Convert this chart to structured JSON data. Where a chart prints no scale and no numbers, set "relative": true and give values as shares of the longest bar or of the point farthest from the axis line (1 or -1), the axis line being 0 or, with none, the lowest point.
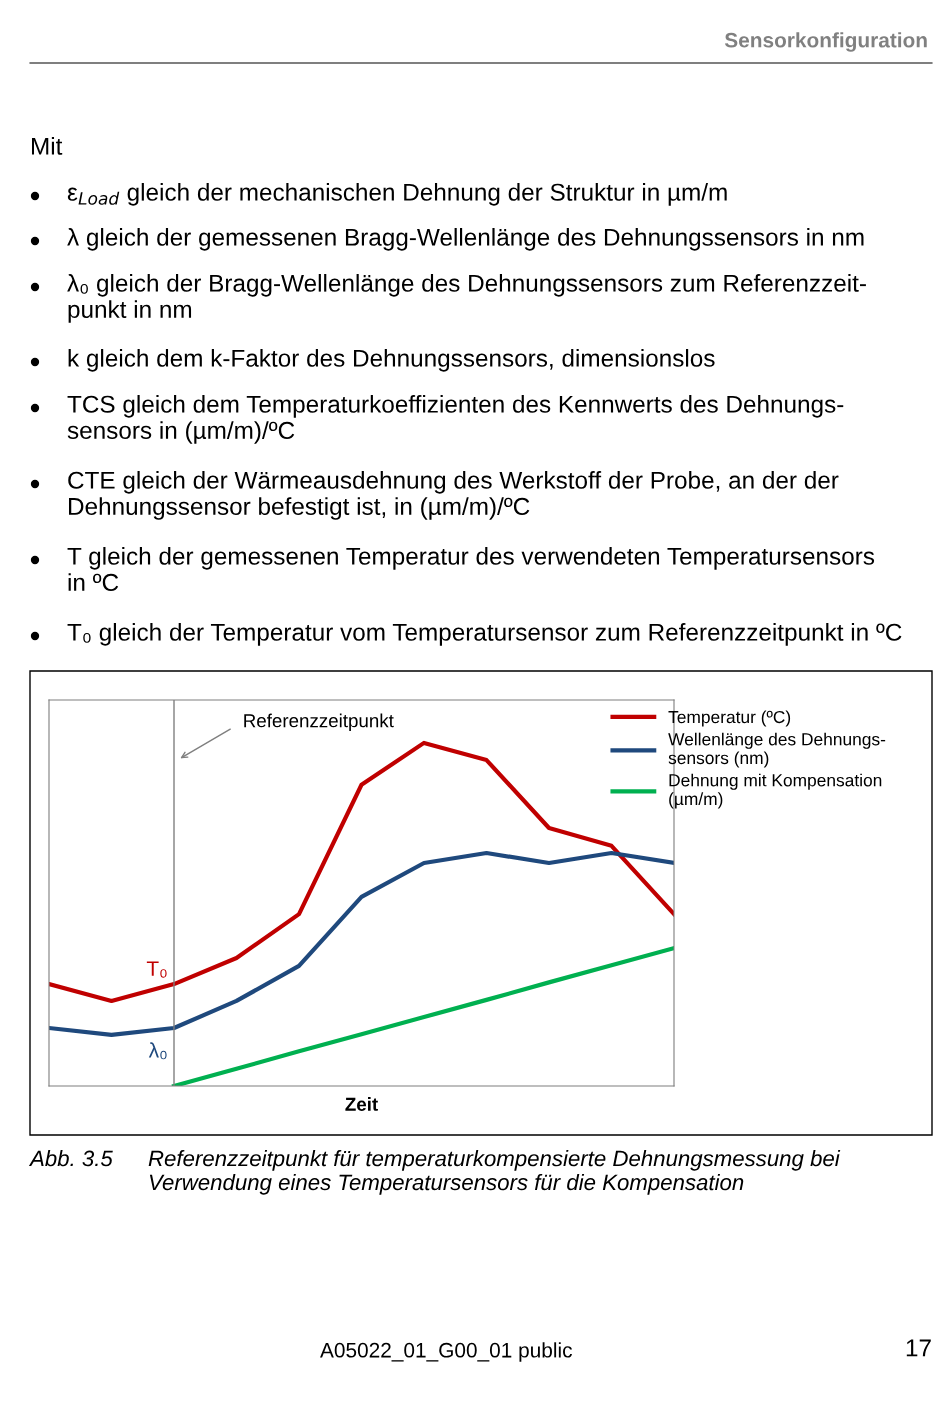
{
  "chart_data": {
    "type": "line",
    "title": "Sensorkonfiguration",
    "xlabel": "Zeit",
    "relative": true,
    "categories": [
      null,
      null,
      null,
      null,
      null,
      null,
      null,
      null,
      null,
      null,
      null
    ],
    "series": [
      {
        "name": "Temperatur (ºC)",
        "color": "#c00000",
        "values": [
          0.297,
          0.248,
          0.297,
          0.373,
          0.501,
          0.878,
          1,
          0.95,
          0.752,
          0.7,
          0.501
        ]
      },
      {
        "name": "Wellenlänge des Dehnungs-\nsensors (nm)",
        "color": "#1f497d",
        "values": [
          0.169,
          0.149,
          0.169,
          0.248,
          0.35,
          0.551,
          0.65,
          0.679,
          0.65,
          0.679,
          0.65
        ]
      },
      {
        "name": "Dehnung mit Kompensation\n(µm/m)",
        "color": "#00b050",
        "values": [
          null,
          null,
          0,
          0.05,
          0.101,
          0.151,
          0.201,
          0.251,
          0.302,
          0.352,
          0.402
        ]
      }
    ],
    "legend": "top right",
    "marker": "none",
    "line_style": "solid",
    "annotations": [
      "Mit",
      "ε$_{Load}$ gleich der mechanischen Dehnung der Struktur in µm/m",
      "λ gleich der gemessenen Bragg-Wellenlänge des Dehnungssensors in nm",
      "λ₀ gleich der Bragg-Wellenlänge des Dehnungssensors zum Referenzzeit-\npunkt in nm",
      "k gleich dem k-Faktor des Dehnungssensors, dimensionslos",
      "TCS gleich dem Temperaturkoeffizienten des Kennwerts des Dehnungs-\nsensors in (µm/m)/ºC",
      "CTE gleich der Wärmeausdehnung des Werkstoff der Probe, an der der\nDehnungssensor befestigt ist, in (µm/m)/ºC",
      "T gleich der gemessenen Temperatur des verwendeten Temperatursensors\nin ºC",
      "T₀ gleich der Temperatur vom Temperatursensor zum Referenzzeitpunkt in ºC",
      {
        "text": "T₀",
        "y": 0.297
      },
      {
        "text": "λ₀",
        "y": 0.169
      },
      "Abb. 3.5",
      "Referenzzeitpunkt für temperaturkompensierte Dehnungsmessung bei\nVerwendung eines Temperatursensors für die Kompensation",
      "A05022_01_G00_01 public",
      "17",
      "Referenzzeitpunkt"
    ]
  }
}
